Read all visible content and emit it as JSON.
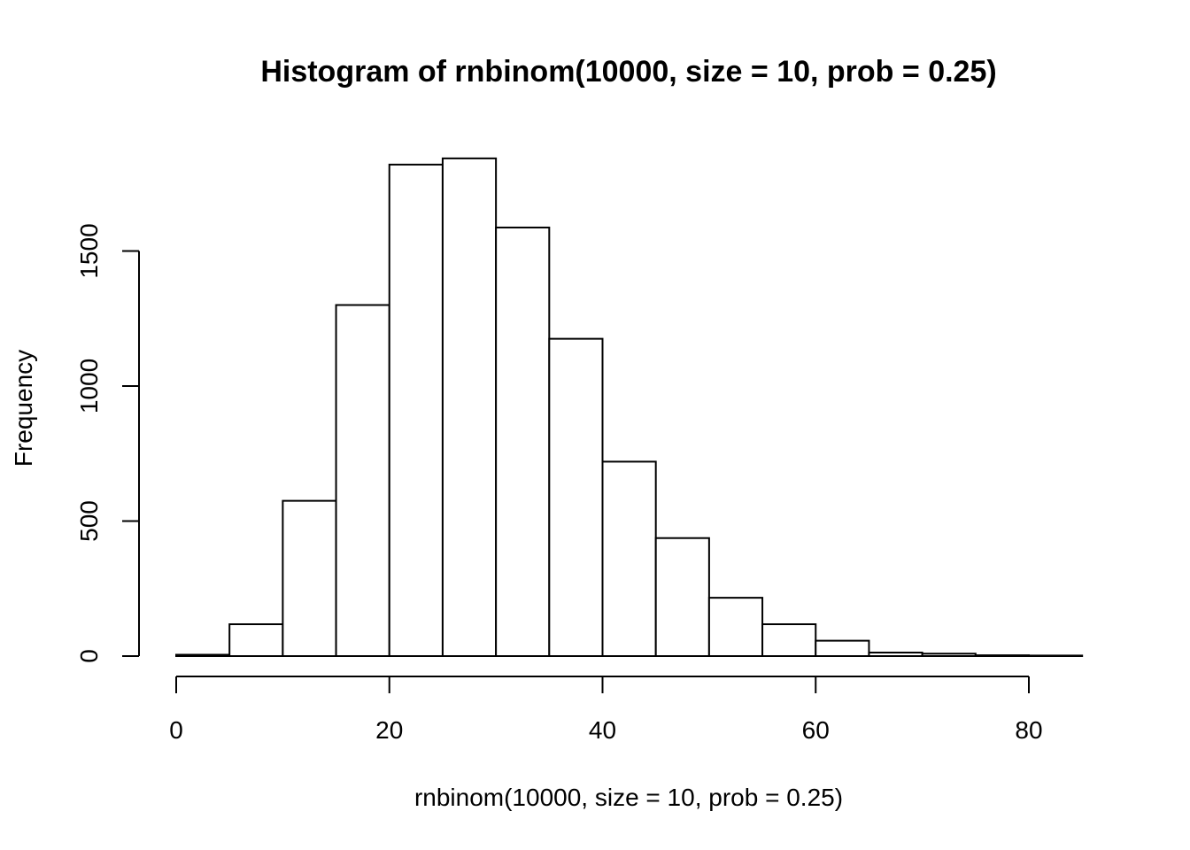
{
  "chart_data": {
    "type": "bar",
    "title": "Histogram of rnbinom(10000, size = 10, prob = 0.25)",
    "xlabel": "rnbinom(10000, size = 10, prob = 0.25)",
    "ylabel": "Frequency",
    "xlim": [
      0,
      85
    ],
    "ylim": [
      0,
      1850
    ],
    "x_ticks": [
      0,
      20,
      40,
      60,
      80
    ],
    "y_ticks": [
      0,
      500,
      1000,
      1500
    ],
    "bins": [
      {
        "start": 0,
        "end": 5,
        "value": 5
      },
      {
        "start": 5,
        "end": 10,
        "value": 118
      },
      {
        "start": 10,
        "end": 15,
        "value": 575
      },
      {
        "start": 15,
        "end": 20,
        "value": 1300
      },
      {
        "start": 20,
        "end": 25,
        "value": 1820
      },
      {
        "start": 25,
        "end": 30,
        "value": 1843
      },
      {
        "start": 30,
        "end": 35,
        "value": 1587
      },
      {
        "start": 35,
        "end": 40,
        "value": 1175
      },
      {
        "start": 40,
        "end": 45,
        "value": 720
      },
      {
        "start": 45,
        "end": 50,
        "value": 437
      },
      {
        "start": 50,
        "end": 55,
        "value": 216
      },
      {
        "start": 55,
        "end": 60,
        "value": 118
      },
      {
        "start": 60,
        "end": 65,
        "value": 57
      },
      {
        "start": 65,
        "end": 70,
        "value": 13
      },
      {
        "start": 70,
        "end": 75,
        "value": 9
      },
      {
        "start": 75,
        "end": 80,
        "value": 3
      },
      {
        "start": 80,
        "end": 85,
        "value": 2
      }
    ],
    "grid": false,
    "legend": "none"
  }
}
